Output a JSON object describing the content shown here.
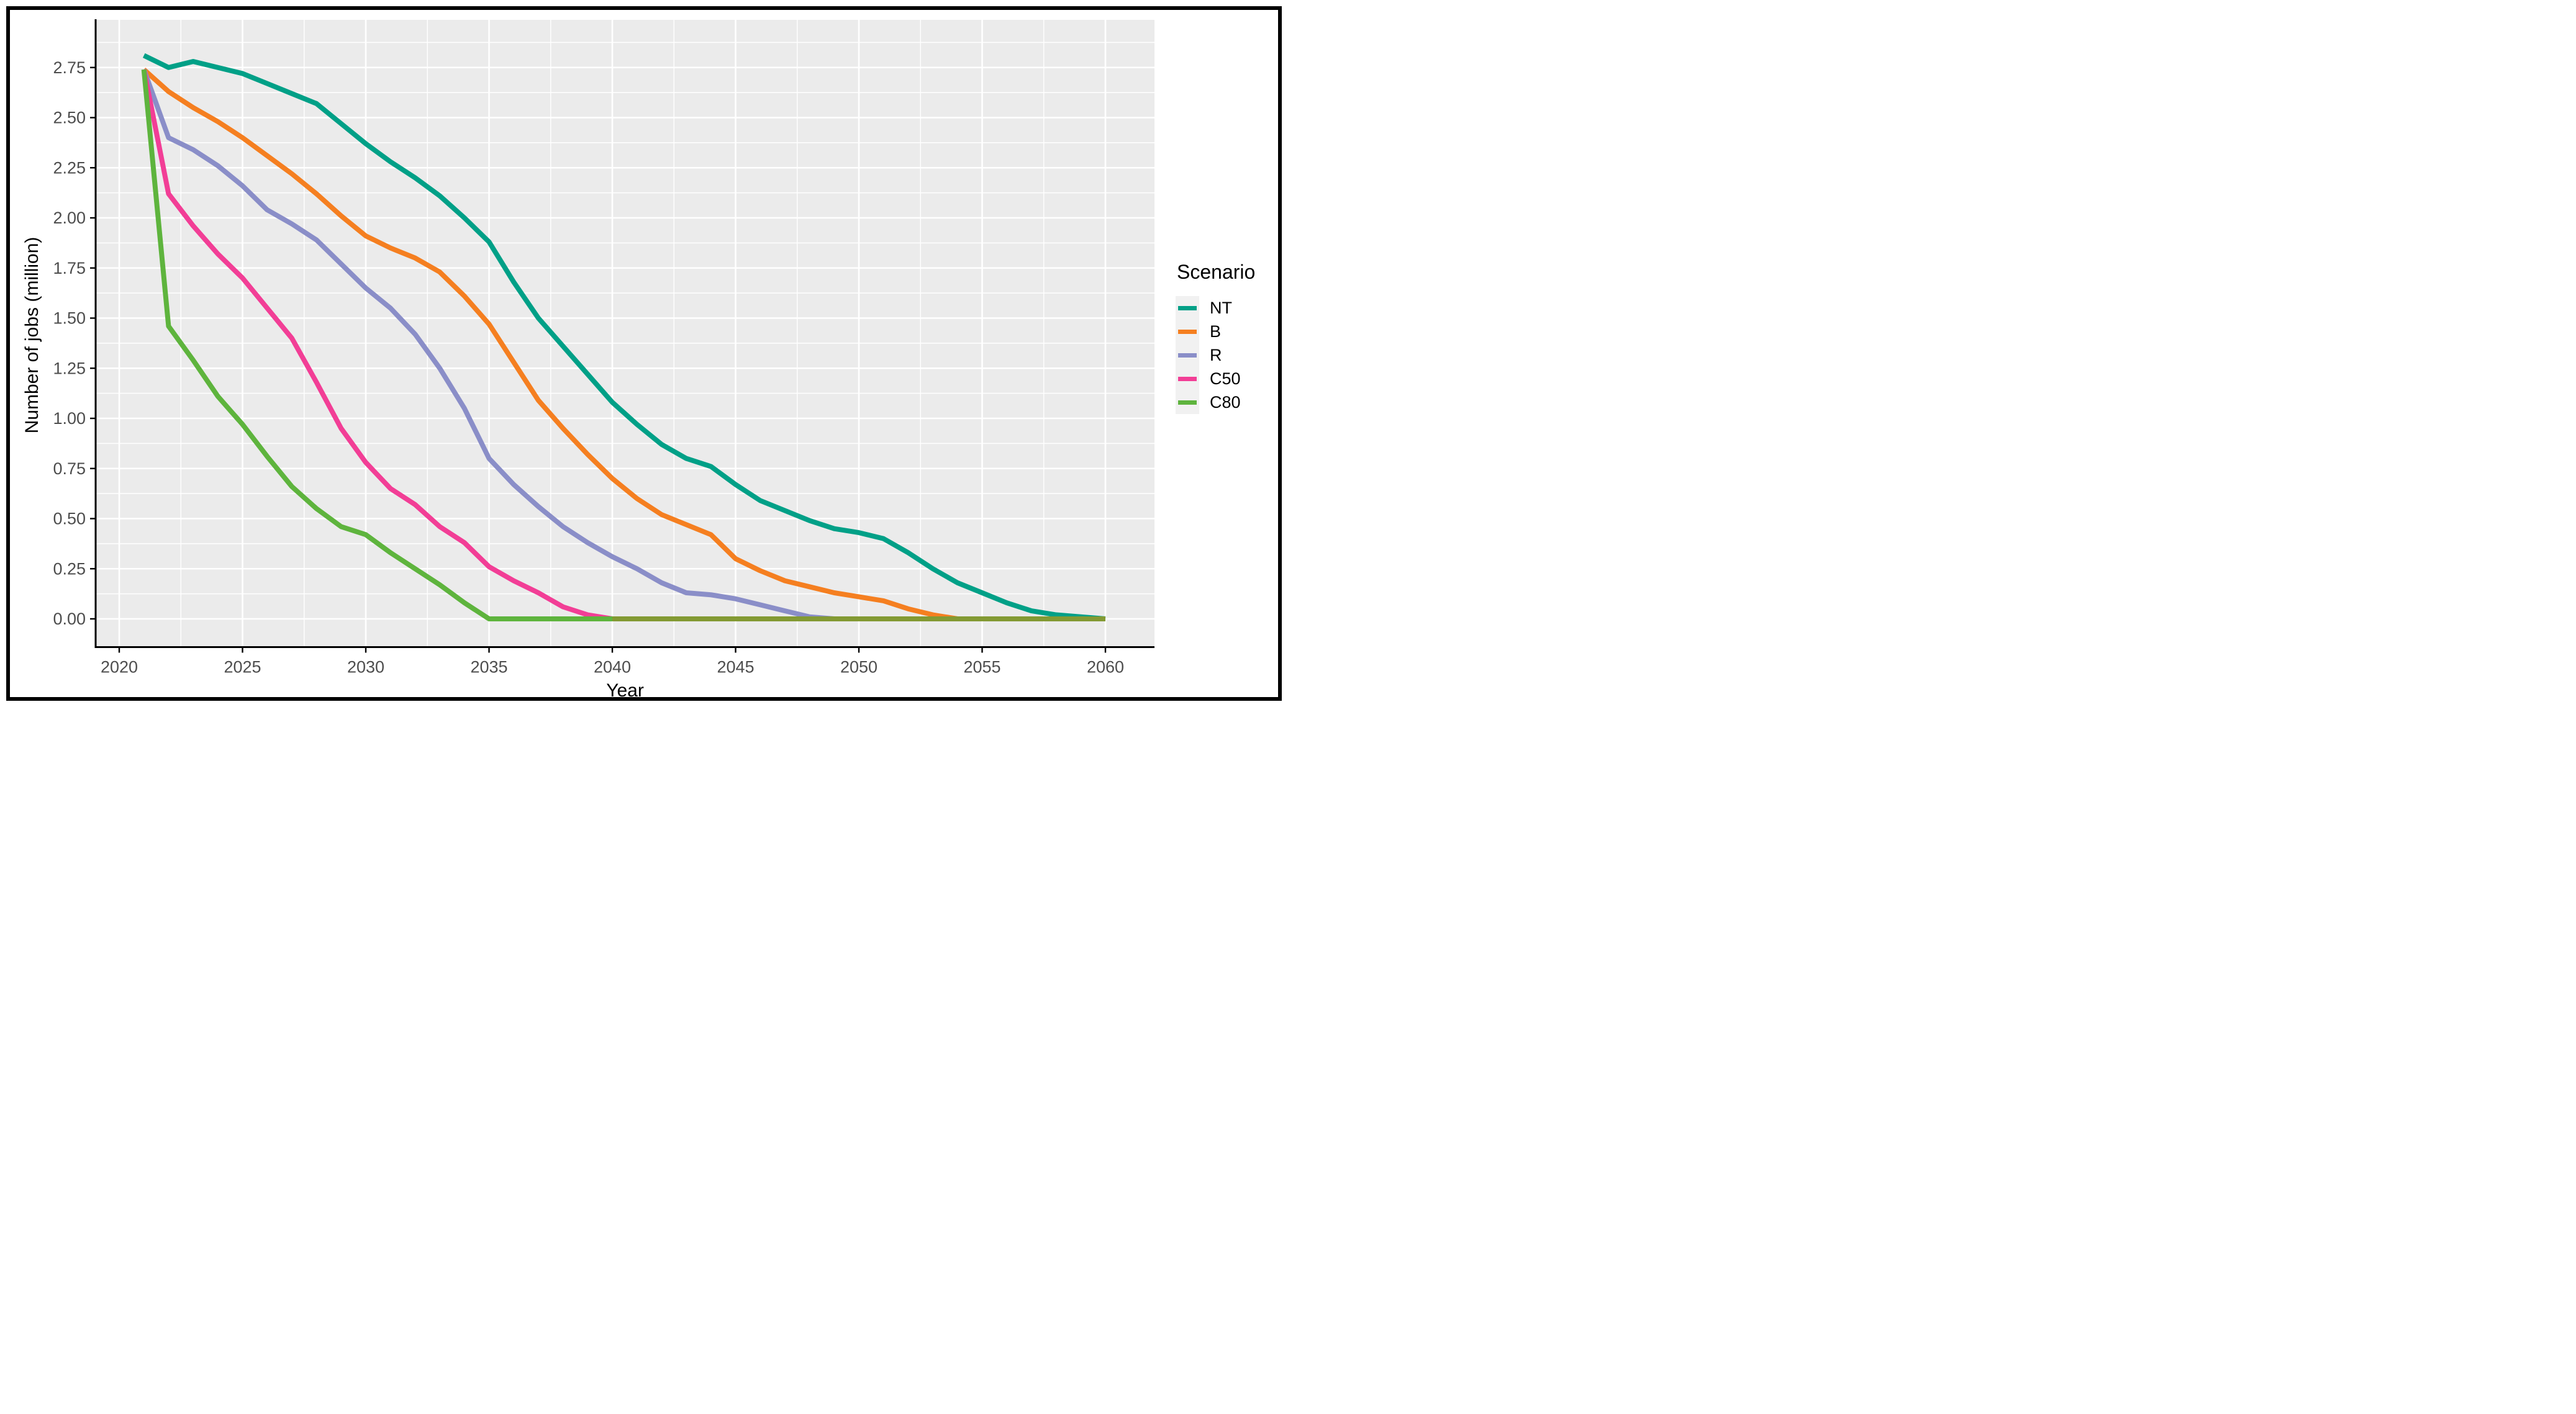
{
  "figure": {
    "background": "#FFFFFF",
    "border_color": "#000000"
  },
  "chart_data": {
    "type": "line",
    "title": "",
    "xlabel": "Year",
    "ylabel": "Number of jobs (million)",
    "legend_title": "Scenario",
    "legend_position": "right",
    "grid": "on",
    "panel_bg": "#EBEBEB",
    "grid_color": "#FFFFFF",
    "axis_text_color": "#4D4D4D",
    "axis_line_color": "#000000",
    "xlim": [
      2018.6,
      2062.0
    ],
    "ylim": [
      -0.14,
      2.99
    ],
    "x_ticks": [
      2020,
      2025,
      2030,
      2035,
      2040,
      2045,
      2050,
      2055,
      2060
    ],
    "x_tick_labels": [
      "2020",
      "2025",
      "2030",
      "2035",
      "2040",
      "2045",
      "2050",
      "2055",
      "2060"
    ],
    "x_minor_ticks": [
      2022.5,
      2027.5,
      2032.5,
      2037.5,
      2042.5,
      2047.5,
      2052.5,
      2057.5
    ],
    "y_ticks": [
      0.0,
      0.25,
      0.5,
      0.75,
      1.0,
      1.25,
      1.5,
      1.75,
      2.0,
      2.25,
      2.5,
      2.75
    ],
    "y_tick_labels": [
      "0.00",
      "0.25",
      "0.50",
      "0.75",
      "1.00",
      "1.25",
      "1.50",
      "1.75",
      "2.00",
      "2.25",
      "2.50",
      "2.75"
    ],
    "y_minor_ticks": [
      0.125,
      0.375,
      0.625,
      0.875,
      1.125,
      1.375,
      1.625,
      1.875,
      2.125,
      2.375,
      2.625,
      2.875
    ],
    "x": [
      2021,
      2022,
      2023,
      2024,
      2025,
      2026,
      2027,
      2028,
      2029,
      2030,
      2031,
      2032,
      2033,
      2034,
      2035,
      2036,
      2037,
      2038,
      2039,
      2040,
      2041,
      2042,
      2043,
      2044,
      2045,
      2046,
      2047,
      2048,
      2049,
      2050,
      2051,
      2052,
      2053,
      2054,
      2055,
      2056,
      2057,
      2058,
      2059,
      2060
    ],
    "series": [
      {
        "name": "NT",
        "color": "#00A087",
        "values": [
          2.81,
          2.75,
          2.78,
          2.75,
          2.72,
          2.67,
          2.62,
          2.57,
          2.47,
          2.37,
          2.28,
          2.2,
          2.11,
          2.0,
          1.88,
          1.68,
          1.5,
          1.36,
          1.22,
          1.08,
          0.97,
          0.87,
          0.8,
          0.76,
          0.67,
          0.59,
          0.54,
          0.49,
          0.45,
          0.43,
          0.4,
          0.33,
          0.25,
          0.18,
          0.13,
          0.08,
          0.04,
          0.02,
          0.01,
          0.0
        ]
      },
      {
        "name": "B",
        "color": "#F57F20",
        "values": [
          2.74,
          2.63,
          2.55,
          2.48,
          2.4,
          2.31,
          2.22,
          2.12,
          2.01,
          1.91,
          1.85,
          1.8,
          1.73,
          1.61,
          1.47,
          1.28,
          1.09,
          0.95,
          0.82,
          0.7,
          0.6,
          0.52,
          0.47,
          0.42,
          0.3,
          0.24,
          0.19,
          0.16,
          0.13,
          0.11,
          0.09,
          0.05,
          0.02,
          0.0,
          0.0,
          0.0,
          0.0,
          0.0,
          0.0,
          0.0
        ]
      },
      {
        "name": "R",
        "color": "#8A8EC8",
        "values": [
          2.74,
          2.4,
          2.34,
          2.26,
          2.16,
          2.04,
          1.97,
          1.89,
          1.77,
          1.65,
          1.55,
          1.42,
          1.25,
          1.05,
          0.8,
          0.67,
          0.56,
          0.46,
          0.38,
          0.31,
          0.25,
          0.18,
          0.13,
          0.12,
          0.1,
          0.07,
          0.04,
          0.01,
          0.0,
          0.0,
          0.0,
          0.0,
          0.0,
          0.0,
          0.0,
          0.0,
          0.0,
          0.0,
          0.0,
          0.0
        ]
      },
      {
        "name": "C50",
        "color": "#F23E96",
        "values": [
          2.74,
          2.12,
          1.96,
          1.82,
          1.7,
          1.55,
          1.4,
          1.18,
          0.95,
          0.78,
          0.65,
          0.57,
          0.46,
          0.38,
          0.26,
          0.19,
          0.13,
          0.06,
          0.02,
          0.0,
          0.0,
          0.0,
          0.0,
          0.0,
          0.0,
          0.0,
          0.0,
          0.0,
          0.0,
          0.0,
          0.0,
          0.0,
          0.0,
          0.0,
          0.0,
          0.0,
          0.0,
          0.0,
          0.0,
          0.0
        ]
      },
      {
        "name": "C80",
        "color": "#5EB43D",
        "values": [
          2.74,
          1.46,
          1.29,
          1.11,
          0.97,
          0.81,
          0.66,
          0.55,
          0.46,
          0.42,
          0.33,
          0.25,
          0.17,
          0.08,
          0.0,
          0.0,
          0.0,
          0.0,
          0.0,
          0.0,
          0.0,
          0.0,
          0.0,
          0.0,
          0.0,
          0.0,
          0.0,
          0.0,
          0.0,
          0.0,
          0.0,
          0.0,
          0.0,
          0.0,
          0.0,
          0.0,
          0.0,
          0.0,
          0.0,
          0.0
        ]
      }
    ],
    "zero_overlap": {
      "comment_color_of_merged_zero_lines": "#839A33",
      "color": "#839A33",
      "from_year": 2040,
      "to_year": 2060
    }
  }
}
